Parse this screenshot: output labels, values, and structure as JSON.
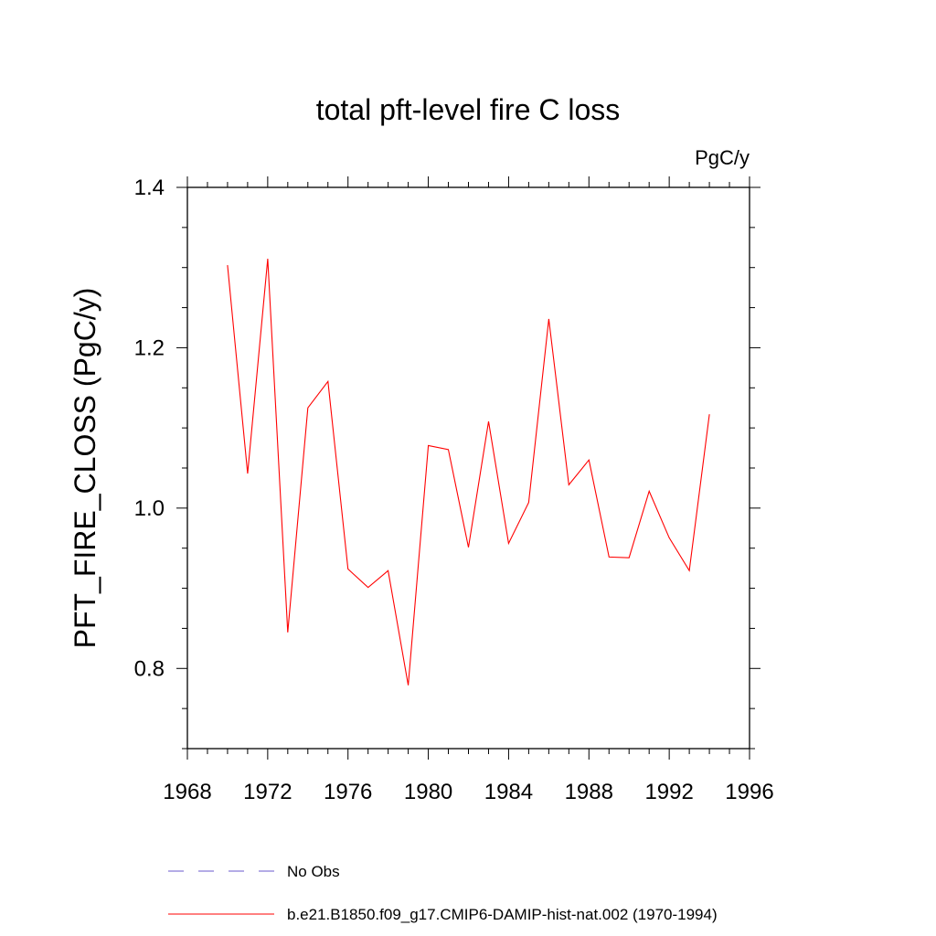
{
  "chart_data": {
    "type": "line",
    "title": "total pft-level fire C loss",
    "units": "PgC/y",
    "ylabel": "PFT_FIRE_CLOSS  (PgC/y)",
    "xlabel": "",
    "xlim": [
      1968,
      1996
    ],
    "ylim": [
      0.7,
      1.4
    ],
    "x_ticks": [
      "1968",
      "1972",
      "1976",
      "1980",
      "1984",
      "1988",
      "1992",
      "1996"
    ],
    "y_ticks": [
      "0.8",
      "1.0",
      "1.2",
      "1.4"
    ],
    "grid": false,
    "legend_position": "bottom",
    "series": [
      {
        "name": "b.e21.B1850.f09_g17.CMIP6-DAMIP-hist-nat.002 (1970-1994)",
        "color": "#ff0000",
        "style": "solid",
        "x": [
          1970,
          1971,
          1972,
          1973,
          1974,
          1975,
          1976,
          1977,
          1978,
          1979,
          1980,
          1981,
          1982,
          1983,
          1984,
          1985,
          1986,
          1987,
          1988,
          1989,
          1990,
          1991,
          1992,
          1993,
          1994
        ],
        "values": [
          1.303,
          1.043,
          1.311,
          0.845,
          1.125,
          1.158,
          0.924,
          0.901,
          0.922,
          0.779,
          1.078,
          1.073,
          0.951,
          1.108,
          0.956,
          1.007,
          1.236,
          1.029,
          1.06,
          0.939,
          0.938,
          1.021,
          0.963,
          0.922,
          1.117
        ]
      }
    ],
    "legend": [
      {
        "label": "No Obs",
        "color": "#6a5acd",
        "style": "dashed"
      },
      {
        "label": "b.e21.B1850.f09_g17.CMIP6-DAMIP-hist-nat.002 (1970-1994)",
        "color": "#ff0000",
        "style": "solid"
      }
    ]
  }
}
